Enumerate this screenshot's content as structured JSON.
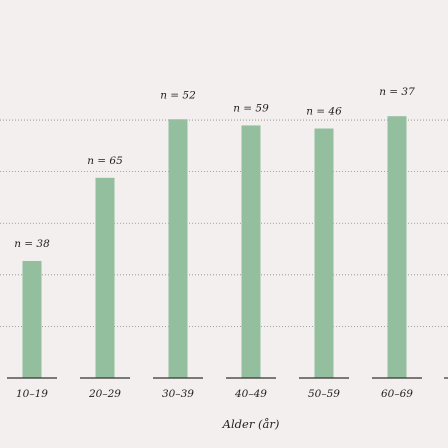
{
  "chart_data": {
    "type": "bar",
    "xlabel": "Alder (år)",
    "categories": [
      "10–19",
      "20–29",
      "30–39",
      "40–49",
      "50–59",
      "60–69"
    ],
    "values": [
      38,
      65,
      84,
      82,
      81,
      85
    ],
    "data_labels": [
      "n = 38",
      "n = 65",
      "n = 52",
      "n = 59",
      "n = 46",
      "n = 37"
    ],
    "ylim": [
      0,
      100
    ],
    "grid": true,
    "bar_color": "#93bf9f",
    "background_color": "#f3efee"
  }
}
